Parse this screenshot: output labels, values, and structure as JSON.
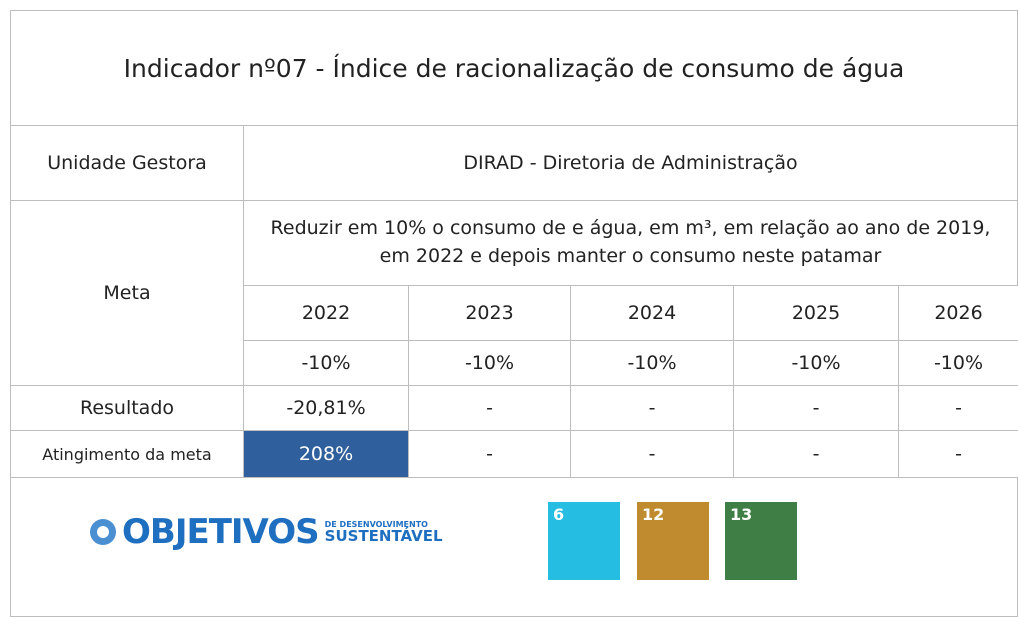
{
  "title": "Indicador nº07 - Índice de racionalização de consumo de água",
  "unidade": {
    "label": "Unidade Gestora",
    "value": "DIRAD - Diretoria de Administração"
  },
  "meta": {
    "label": "Meta",
    "description": "Reduzir em 10% o consumo de e água, em m³, em relação ao ano de 2019, em 2022 e depois manter o consumo neste patamar",
    "years": [
      "2022",
      "2023",
      "2024",
      "2025",
      "2026"
    ],
    "targets": [
      "-10%",
      "-10%",
      "-10%",
      "-10%",
      "-10%"
    ]
  },
  "resultado": {
    "label": "Resultado",
    "values": [
      "-20,81%",
      "-",
      "-",
      "-",
      "-"
    ]
  },
  "atingimento": {
    "label": "Atingimento da meta",
    "values": [
      "208%",
      "-",
      "-",
      "-",
      "-"
    ]
  },
  "logo": {
    "word": "OBJETIVOS",
    "line1": "DE DESENVOLVIMENTO",
    "line2": "SUSTENTÁVEL"
  },
  "sdg_icons": [
    "6",
    "12",
    "13"
  ]
}
